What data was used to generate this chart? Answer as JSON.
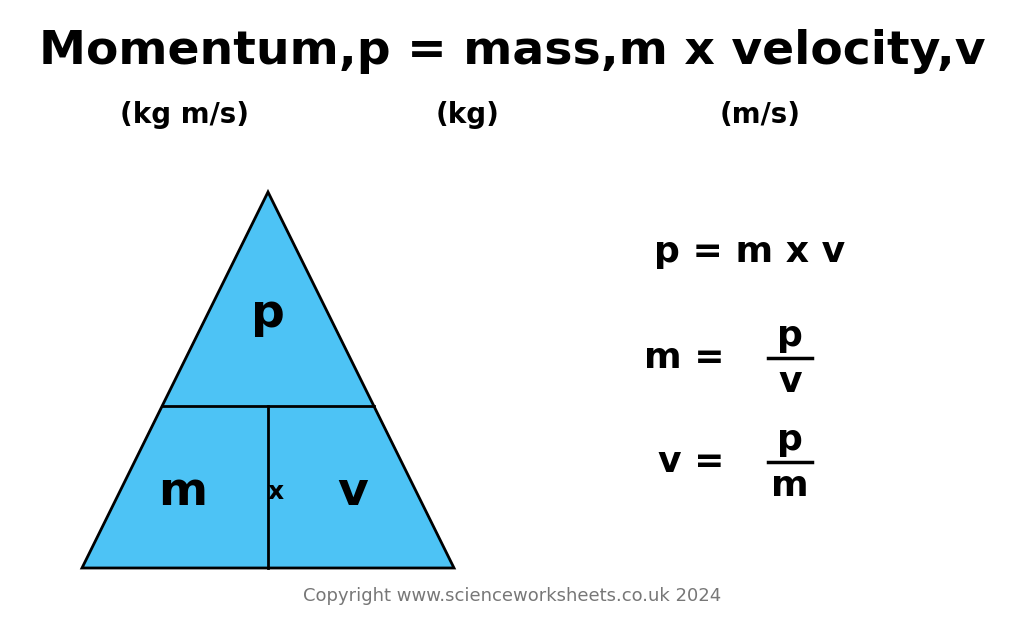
{
  "title": "Momentum,p = mass,m x velocity,v",
  "title_fontsize": 34,
  "title_fontweight": "bold",
  "title_color": "#000000",
  "bg_color": "#ffffff",
  "triangle_color": "#4dc3f5",
  "triangle_edge_color": "#000000",
  "units_p": "(kg m/s)",
  "units_m": "(kg)",
  "units_v": "(m/s)",
  "units_fontsize": 20,
  "units_fontweight": "bold",
  "units_color": "#000000",
  "formula1": "p = m x v",
  "formula2_num": "p",
  "formula2_den": "v",
  "formula3_num": "p",
  "formula3_den": "m",
  "formula_fontsize": 26,
  "formula_fontweight": "bold",
  "formula_color": "#000000",
  "triangle_label_p": "p",
  "triangle_label_m": "m",
  "triangle_label_x": "x",
  "triangle_label_v": "v",
  "triangle_label_fontsize_large": 34,
  "triangle_label_fontsize_small": 18,
  "triangle_label_fontweight": "bold",
  "triangle_label_color": "#000000",
  "copyright": "Copyright www.scienceworksheets.co.uk 2024",
  "copyright_fontsize": 13,
  "copyright_color": "#777777",
  "fig_width": 10.24,
  "fig_height": 6.18,
  "fig_dpi": 100
}
